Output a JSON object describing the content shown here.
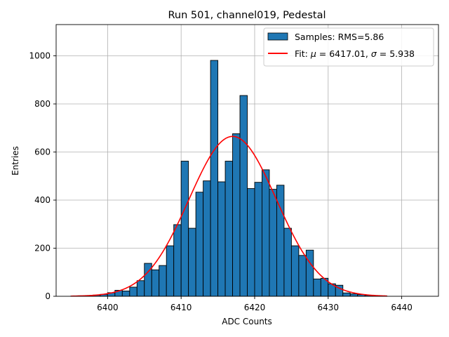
{
  "chart_data": {
    "type": "bar",
    "title": "Run 501, channel019, Pedestal",
    "xlabel": "ADC Counts",
    "ylabel": "Entries",
    "xlim": [
      6393,
      6445
    ],
    "ylim": [
      0,
      1130
    ],
    "xticks": [
      6400,
      6410,
      6420,
      6430,
      6440
    ],
    "yticks": [
      0,
      200,
      400,
      600,
      800,
      1000
    ],
    "grid": true,
    "legend_position": "top-right",
    "bar_color": "#1f77b4",
    "bar_edge_color": "#000000",
    "fit_color": "#ff0000",
    "histogram": {
      "name": "Samples: RMS=5.86",
      "bin_width": 1,
      "bin_starts": [
        6395,
        6396,
        6397,
        6398,
        6399,
        6400,
        6401,
        6402,
        6403,
        6404,
        6405,
        6406,
        6407,
        6408,
        6409,
        6410,
        6411,
        6412,
        6413,
        6414,
        6415,
        6416,
        6417,
        6418,
        6419,
        6420,
        6421,
        6422,
        6423,
        6424,
        6425,
        6426,
        6427,
        6428,
        6429,
        6430,
        6431,
        6432,
        6433,
        6434,
        6435,
        6436,
        6437
      ],
      "counts": [
        1,
        2,
        3,
        5,
        8,
        15,
        25,
        22,
        38,
        65,
        137,
        110,
        128,
        210,
        298,
        562,
        283,
        433,
        480,
        981,
        476,
        562,
        676,
        835,
        448,
        474,
        526,
        445,
        462,
        283,
        210,
        170,
        192,
        72,
        75,
        52,
        46,
        14,
        10,
        7,
        4,
        2,
        1
      ]
    },
    "fit": {
      "label_prefix": "Fit: ",
      "mu_symbol": "μ",
      "mu_text": " = 6417.01, ",
      "sigma_symbol": "σ",
      "sigma_text": " = 5.938",
      "mu": 6417.01,
      "sigma": 5.938,
      "amplitude": 665,
      "x_range": [
        6395,
        6438
      ]
    }
  }
}
